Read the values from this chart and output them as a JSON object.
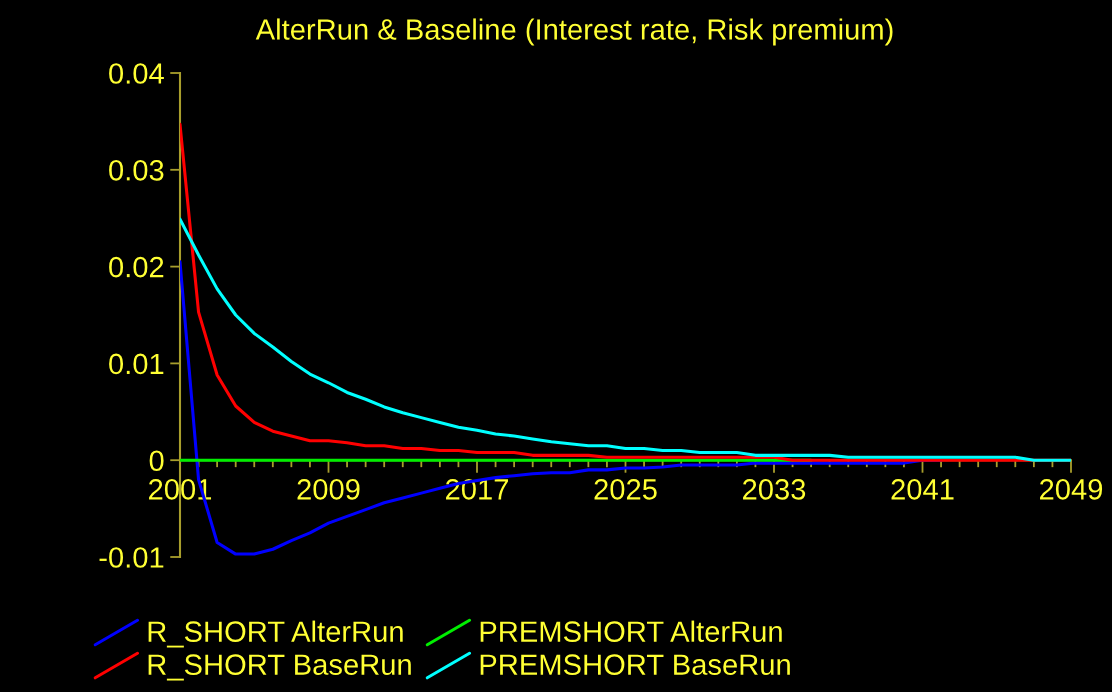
{
  "chart_data": {
    "type": "line",
    "title": "AlterRun & Baseline (Interest rate, Risk premium)",
    "x": [
      2001,
      2002,
      2003,
      2004,
      2005,
      2006,
      2007,
      2008,
      2009,
      2010,
      2011,
      2012,
      2013,
      2014,
      2015,
      2016,
      2017,
      2018,
      2019,
      2020,
      2021,
      2022,
      2023,
      2024,
      2025,
      2026,
      2027,
      2028,
      2029,
      2030,
      2031,
      2032,
      2033,
      2034,
      2035,
      2036,
      2037,
      2038,
      2039,
      2040,
      2041,
      2042,
      2043,
      2044,
      2045,
      2046,
      2047,
      2048,
      2049
    ],
    "series": [
      {
        "name": "R_SHORT AlterRun",
        "color": "#0000ff",
        "values": [
          0.0205,
          -0.002,
          -0.0085,
          -0.0097,
          -0.0097,
          -0.0092,
          -0.0083,
          -0.0075,
          -0.0065,
          -0.0058,
          -0.0051,
          -0.0044,
          -0.0039,
          -0.0034,
          -0.0029,
          -0.0024,
          -0.0021,
          -0.0018,
          -0.0016,
          -0.0014,
          -0.0013,
          -0.0013,
          -0.001,
          -0.001,
          -0.0008,
          -0.0008,
          -0.0007,
          -0.0005,
          -0.0005,
          -0.0005,
          -0.0005,
          -0.0003,
          -0.0003,
          -0.0003,
          -0.0003,
          -0.0003,
          -0.0003,
          -0.0003,
          -0.0003,
          -0.0003,
          0,
          0,
          null,
          null,
          null,
          null,
          null,
          null,
          null
        ]
      },
      {
        "name": "PREMSHORT AlterRun",
        "color": "#00ee00",
        "values": [
          0,
          0,
          0,
          0,
          0,
          0,
          0,
          0,
          0,
          0,
          0,
          0,
          0,
          0,
          0,
          0,
          0,
          0,
          0,
          0,
          0,
          0,
          0,
          0,
          0,
          0,
          0,
          0,
          0,
          0,
          0,
          0,
          0,
          0,
          0,
          null,
          null,
          null,
          null,
          null,
          null,
          null,
          null,
          null,
          null,
          null,
          null,
          null,
          null
        ]
      },
      {
        "name": "R_SHORT BaseRun",
        "color": "#ff0000",
        "values": [
          0.0347,
          0.0153,
          0.0088,
          0.0056,
          0.0039,
          0.003,
          0.0025,
          0.002,
          0.002,
          0.0018,
          0.0015,
          0.0015,
          0.0012,
          0.0012,
          0.001,
          0.001,
          0.0008,
          0.0008,
          0.0008,
          0.0005,
          0.0005,
          0.0005,
          0.0005,
          0.0003,
          0.0003,
          0.0003,
          0.0003,
          0.0003,
          0.0003,
          0.0003,
          0.0003,
          0.0003,
          0.0003,
          0,
          0,
          0,
          0,
          0,
          0,
          0,
          0,
          0,
          0,
          0,
          0,
          0,
          0,
          0,
          0
        ]
      },
      {
        "name": "PREMSHORT BaseRun",
        "color": "#00ffff",
        "values": [
          0.0249,
          0.0212,
          0.0177,
          0.015,
          0.0131,
          0.0117,
          0.0102,
          0.0089,
          0.008,
          0.007,
          0.0063,
          0.0055,
          0.0049,
          0.0044,
          0.0039,
          0.0034,
          0.0031,
          0.0027,
          0.0025,
          0.0022,
          0.0019,
          0.0017,
          0.0015,
          0.0015,
          0.0012,
          0.0012,
          0.001,
          0.001,
          0.0008,
          0.0008,
          0.0008,
          0.0005,
          0.0005,
          0.0005,
          0.0005,
          0.0005,
          0.0003,
          0.0003,
          0.0003,
          0.0003,
          0.0003,
          0.0003,
          0.0003,
          0.0003,
          0.0003,
          0.0003,
          0,
          0,
          0
        ]
      }
    ],
    "xlim": [
      2001,
      2049
    ],
    "ylim": [
      -0.01,
      0.04
    ],
    "xticks": [
      2001,
      {
        "value": 2002,
        "label": null
      },
      {
        "value": 2003,
        "label": null
      },
      {
        "value": 2004,
        "label": null
      },
      {
        "value": 2005,
        "label": null
      },
      {
        "value": 2006,
        "label": null
      },
      {
        "value": 2007,
        "label": null
      },
      {
        "value": 2008,
        "label": null
      },
      2009,
      {
        "value": 2010,
        "label": null
      },
      {
        "value": 2011,
        "label": null
      },
      {
        "value": 2012,
        "label": null
      },
      {
        "value": 2013,
        "label": null
      },
      {
        "value": 2014,
        "label": null
      },
      {
        "value": 2015,
        "label": null
      },
      {
        "value": 2016,
        "label": null
      },
      2017,
      {
        "value": 2018,
        "label": null
      },
      {
        "value": 2019,
        "label": null
      },
      {
        "value": 2020,
        "label": null
      },
      {
        "value": 2021,
        "label": null
      },
      {
        "value": 2022,
        "label": null
      },
      {
        "value": 2023,
        "label": null
      },
      {
        "value": 2024,
        "label": null
      },
      2025,
      {
        "value": 2026,
        "label": null
      },
      {
        "value": 2027,
        "label": null
      },
      {
        "value": 2028,
        "label": null
      },
      {
        "value": 2029,
        "label": null
      },
      {
        "value": 2030,
        "label": null
      },
      {
        "value": 2031,
        "label": null
      },
      {
        "value": 2032,
        "label": null
      },
      2033,
      {
        "value": 2034,
        "label": null
      },
      {
        "value": 2035,
        "label": null
      },
      {
        "value": 2036,
        "label": null
      },
      {
        "value": 2037,
        "label": null
      },
      {
        "value": 2038,
        "label": null
      },
      {
        "value": 2039,
        "label": null
      },
      {
        "value": 2040,
        "label": null
      },
      2041,
      {
        "value": 2042,
        "label": null
      },
      {
        "value": 2043,
        "label": null
      },
      {
        "value": 2044,
        "label": null
      },
      {
        "value": 2045,
        "label": null
      },
      {
        "value": 2046,
        "label": null
      },
      {
        "value": 2047,
        "label": null
      },
      {
        "value": 2048,
        "label": null
      },
      2049
    ],
    "yticks": [
      -0.01,
      0,
      0.01,
      0.02,
      0.03,
      0.04
    ],
    "legend": "bottom left"
  }
}
